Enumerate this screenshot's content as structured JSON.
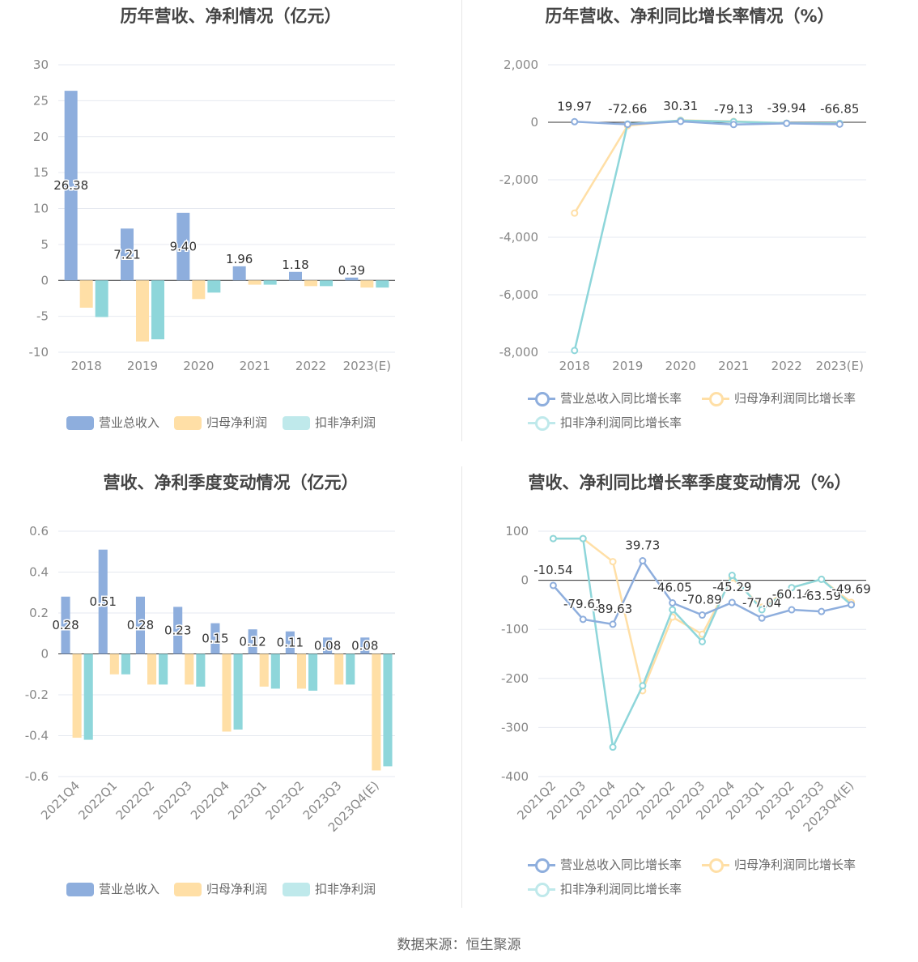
{
  "colors": {
    "revenue": "#8eaedd",
    "net_profit": "#ffdfa6",
    "deducted": "#8ed6da",
    "grid": "#e6e9f0",
    "axis_text": "#888888",
    "label_text": "#333333"
  },
  "source_text": "数据来源：恒生聚源",
  "legend": {
    "bar_items": [
      "营业总收入",
      "归母净利润",
      "扣非净利润"
    ],
    "line_items": [
      "营业总收入同比增长率",
      "归母净利润同比增长率",
      "扣非净利润同比增长率"
    ]
  },
  "chart_data": [
    {
      "id": "annual",
      "type": "bar",
      "title": "历年营收、净利情况（亿元）",
      "categories": [
        "2018",
        "2019",
        "2020",
        "2021",
        "2022",
        "2023(E)"
      ],
      "series": [
        {
          "name": "营业总收入",
          "values": [
            26.38,
            7.21,
            9.4,
            1.96,
            1.18,
            0.39
          ],
          "labels": [
            "26.38",
            "7.21",
            "9.40",
            "1.96",
            "1.18",
            "0.39"
          ]
        },
        {
          "name": "归母净利润",
          "values": [
            -3.8,
            -8.5,
            -2.6,
            -0.6,
            -0.8,
            -1.0
          ]
        },
        {
          "name": "扣非净利润",
          "values": [
            -5.1,
            -8.2,
            -1.7,
            -0.6,
            -0.8,
            -1.0
          ]
        }
      ],
      "ylim": [
        -10,
        30
      ],
      "yticks": [
        "30",
        "25",
        "20",
        "15",
        "10",
        "5",
        "0",
        "-5",
        "-10"
      ],
      "ytick_values": [
        30,
        25,
        20,
        15,
        10,
        5,
        0,
        -5,
        -10
      ],
      "grid": true,
      "legend_position": "bottom"
    },
    {
      "id": "annual_growth",
      "type": "line",
      "title": "历年营收、净利同比增长率情况（%）",
      "categories": [
        "2018",
        "2019",
        "2020",
        "2021",
        "2022",
        "2023(E)"
      ],
      "series": [
        {
          "name": "营业总收入同比增长率",
          "values": [
            19.97,
            -72.66,
            30.31,
            -79.13,
            -39.94,
            -66.85
          ],
          "labels": [
            "19.97",
            "-72.66",
            "30.31",
            "-79.13",
            "-39.94",
            "-66.85"
          ]
        },
        {
          "name": "归母净利润同比增长率",
          "values": [
            -3160,
            -120,
            70,
            30,
            -30,
            -40
          ]
        },
        {
          "name": "扣非净利润同比增长率",
          "values": [
            -7940,
            -60,
            60,
            20,
            -30,
            -40
          ]
        }
      ],
      "ylim": [
        -8000,
        2000
      ],
      "yticks": [
        "2,000",
        "0",
        "-2,000",
        "-4,000",
        "-6,000",
        "-8,000"
      ],
      "ytick_values": [
        2000,
        0,
        -2000,
        -4000,
        -6000,
        -8000
      ],
      "grid": true,
      "legend_position": "bottom"
    },
    {
      "id": "quarterly",
      "type": "bar",
      "title": "营收、净利季度变动情况（亿元）",
      "categories": [
        "2021Q4",
        "2022Q1",
        "2022Q2",
        "2022Q3",
        "2022Q4",
        "2023Q1",
        "2023Q2",
        "2023Q3",
        "2023Q4(E)"
      ],
      "series": [
        {
          "name": "营业总收入",
          "values": [
            0.28,
            0.51,
            0.28,
            0.23,
            0.15,
            0.12,
            0.11,
            0.08,
            0.08
          ],
          "labels": [
            "0.28",
            "0.51",
            "0.28",
            "0.23",
            "0.15",
            "0.12",
            "0.11",
            "0.08",
            "0.08"
          ]
        },
        {
          "name": "归母净利润",
          "values": [
            -0.41,
            -0.1,
            -0.15,
            -0.15,
            -0.38,
            -0.16,
            -0.17,
            -0.15,
            -0.57
          ]
        },
        {
          "name": "扣非净利润",
          "values": [
            -0.42,
            -0.1,
            -0.15,
            -0.16,
            -0.37,
            -0.17,
            -0.18,
            -0.15,
            -0.55
          ]
        }
      ],
      "ylim": [
        -0.6,
        0.6
      ],
      "yticks": [
        "0.6",
        "0.4",
        "0.2",
        "0",
        "-0.2",
        "-0.4",
        "-0.6"
      ],
      "ytick_values": [
        0.6,
        0.4,
        0.2,
        0,
        -0.2,
        -0.4,
        -0.6
      ],
      "grid": true,
      "legend_position": "bottom"
    },
    {
      "id": "quarterly_growth",
      "type": "line",
      "title": "营收、净利同比增长率季度变动情况（%）",
      "categories": [
        "2021Q2",
        "2021Q3",
        "2021Q4",
        "2022Q1",
        "2022Q2",
        "2022Q3",
        "2022Q4",
        "2023Q1",
        "2023Q2",
        "2023Q3",
        "2023Q4(E)"
      ],
      "series": [
        {
          "name": "营业总收入同比增长率",
          "values": [
            -10.54,
            -79.61,
            -89.63,
            39.73,
            -46.05,
            -70.89,
            -45.29,
            -77.04,
            -60.14,
            -63.59,
            -49.69
          ],
          "labels": [
            "-10.54",
            "-79.61",
            "-89.63",
            "39.73",
            "-46.05",
            "-70.89",
            "-45.29",
            "-77.04",
            "-60.14",
            "-63.59",
            "-49.69"
          ]
        },
        {
          "name": "归母净利润同比增长率",
          "values": [
            85,
            85,
            38,
            -225,
            -75,
            -110,
            5,
            -55,
            -15,
            2,
            -45
          ]
        },
        {
          "name": "扣非净利润同比增长率",
          "values": [
            85,
            85,
            -340,
            -215,
            -60,
            -125,
            10,
            -60,
            -15,
            2,
            -50
          ]
        }
      ],
      "ylim": [
        -400,
        100
      ],
      "yticks": [
        "100",
        "0",
        "-100",
        "-200",
        "-300",
        "-400"
      ],
      "ytick_values": [
        100,
        0,
        -100,
        -200,
        -300,
        -400
      ],
      "grid": true,
      "legend_position": "bottom"
    }
  ]
}
